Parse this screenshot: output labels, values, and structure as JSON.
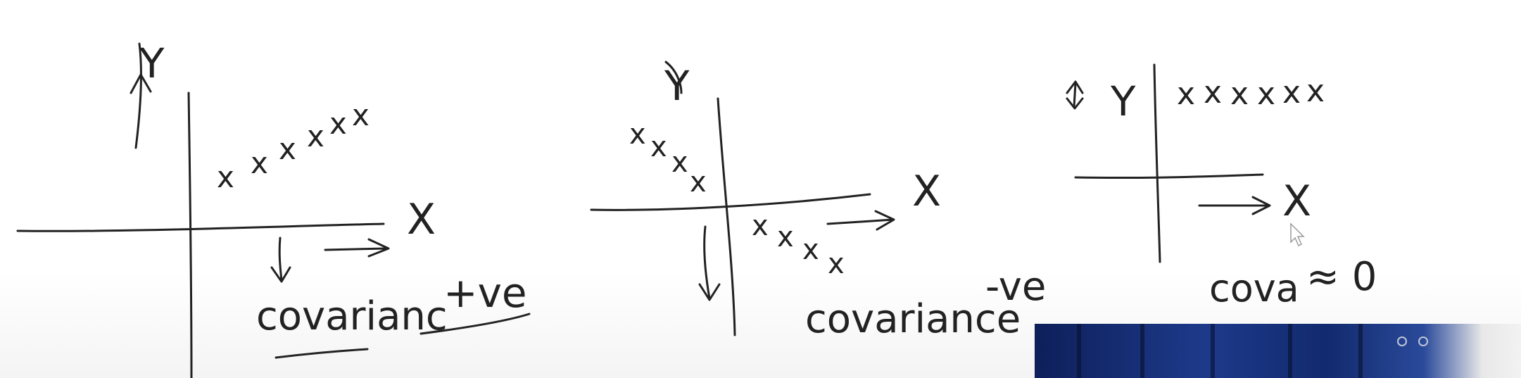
{
  "panels": [
    {
      "axis_y": "Y",
      "axis_x": "X",
      "points": [
        "x",
        "x",
        "x",
        "x",
        "x",
        "x"
      ],
      "caption": "covarianc",
      "sign": "+ve"
    },
    {
      "axis_y": "Y",
      "axis_x": "X",
      "points": [
        "x",
        "x",
        "x",
        "x",
        "x",
        "x",
        "x",
        "x"
      ],
      "caption": "covariance",
      "sign": "-ve"
    },
    {
      "axis_y": "Y",
      "axis_x": "X",
      "points": [
        "x",
        "x",
        "x",
        "x",
        "x",
        "x"
      ],
      "caption": "cova",
      "sign": "≈ 0"
    }
  ],
  "inset": {
    "icon": "webcam-video-icon",
    "colors": [
      "#0e1f5a",
      "#1d3a8a",
      "#f2f2f2"
    ]
  }
}
